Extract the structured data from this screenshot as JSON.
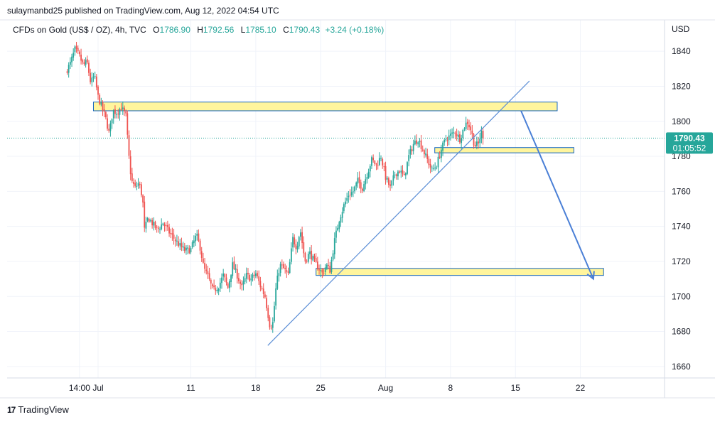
{
  "header": {
    "published_text": "sulaymanbd25 published on TradingView.com, Aug 12, 2022 04:54 UTC"
  },
  "legend": {
    "symbol": "CFDs on Gold (US$ / OZ), 4h, TVC",
    "open_label": "O",
    "open": "1786.90",
    "high_label": "H",
    "high": "1792.56",
    "low_label": "L",
    "low": "1785.10",
    "close_label": "C",
    "close": "1790.43",
    "change": "+3.24 (+0.18%)"
  },
  "price_axis": {
    "currency": "USD"
  },
  "last_price": {
    "price": "1790.43",
    "countdown": "01:05:52"
  },
  "footer": {
    "brand": "TradingView",
    "logo_glyph": "17"
  },
  "colors": {
    "up": "#26a69a",
    "down": "#ef5350",
    "zone_fill": "#fff59d",
    "zone_stroke": "#1565c0",
    "trendline": "#5b8ed6",
    "projection": "#4a7fd6",
    "last_price_bg": "#26a69a"
  },
  "chart_data": {
    "type": "candlestick",
    "timeframe": "4h",
    "ylim": [
      1650,
      1848
    ],
    "y_ticks": [
      1660,
      1680,
      1700,
      1720,
      1740,
      1760,
      1780,
      1800,
      1820,
      1840
    ],
    "x_range_days": [
      -3.5,
      52
    ],
    "x_ticks": [
      {
        "label": "14:00",
        "day": -2
      },
      {
        "label": "Jul",
        "day": 0
      },
      {
        "label": "11",
        "day": 10
      },
      {
        "label": "18",
        "day": 17
      },
      {
        "label": "25",
        "day": 24
      },
      {
        "label": "Aug",
        "day": 31
      },
      {
        "label": "8",
        "day": 38
      },
      {
        "label": "15",
        "day": 45
      },
      {
        "label": "22",
        "day": 52
      }
    ],
    "close_path": [
      [
        -3.5,
        1828
      ],
      [
        -3.0,
        1833
      ],
      [
        -2.5,
        1841
      ],
      [
        -2.0,
        1837
      ],
      [
        -1.6,
        1832
      ],
      [
        -1.2,
        1834
      ],
      [
        -0.8,
        1822
      ],
      [
        -0.4,
        1826
      ],
      [
        0.0,
        1814
      ],
      [
        0.4,
        1808
      ],
      [
        0.8,
        1802
      ],
      [
        1.2,
        1793
      ],
      [
        1.6,
        1806
      ],
      [
        2.0,
        1805
      ],
      [
        2.5,
        1808
      ],
      [
        3.0,
        1803
      ],
      [
        3.3,
        1781
      ],
      [
        3.6,
        1766
      ],
      [
        4.0,
        1762
      ],
      [
        4.4,
        1765
      ],
      [
        4.8,
        1756
      ],
      [
        5.0,
        1738
      ],
      [
        5.4,
        1745
      ],
      [
        5.8,
        1742
      ],
      [
        6.4,
        1738
      ],
      [
        7.0,
        1742
      ],
      [
        7.6,
        1737
      ],
      [
        8.2,
        1733
      ],
      [
        8.8,
        1729
      ],
      [
        9.4,
        1726
      ],
      [
        10.0,
        1727
      ],
      [
        10.6,
        1735
      ],
      [
        11.0,
        1728
      ],
      [
        11.4,
        1716
      ],
      [
        11.8,
        1712
      ],
      [
        12.4,
        1703
      ],
      [
        13.0,
        1706
      ],
      [
        13.5,
        1712
      ],
      [
        14.0,
        1705
      ],
      [
        14.5,
        1718
      ],
      [
        15.0,
        1712
      ],
      [
        15.5,
        1705
      ],
      [
        16.0,
        1712
      ],
      [
        16.5,
        1710
      ],
      [
        17.0,
        1713
      ],
      [
        17.5,
        1706
      ],
      [
        18.0,
        1700
      ],
      [
        18.5,
        1684
      ],
      [
        18.8,
        1683
      ],
      [
        19.2,
        1706
      ],
      [
        19.6,
        1718
      ],
      [
        20.0,
        1716
      ],
      [
        20.5,
        1712
      ],
      [
        21.0,
        1733
      ],
      [
        21.4,
        1728
      ],
      [
        21.8,
        1738
      ],
      [
        22.3,
        1720
      ],
      [
        22.8,
        1725
      ],
      [
        23.3,
        1720
      ],
      [
        23.8,
        1716
      ],
      [
        24.2,
        1713
      ],
      [
        24.6,
        1718
      ],
      [
        25.0,
        1715
      ],
      [
        25.5,
        1732
      ],
      [
        26.0,
        1744
      ],
      [
        26.5,
        1752
      ],
      [
        27.0,
        1758
      ],
      [
        27.5,
        1760
      ],
      [
        28.0,
        1766
      ],
      [
        28.5,
        1762
      ],
      [
        29.0,
        1770
      ],
      [
        29.5,
        1778
      ],
      [
        30.0,
        1775
      ],
      [
        30.5,
        1780
      ],
      [
        31.0,
        1768
      ],
      [
        31.5,
        1762
      ],
      [
        32.0,
        1770
      ],
      [
        32.5,
        1772
      ],
      [
        33.0,
        1768
      ],
      [
        33.5,
        1780
      ],
      [
        34.0,
        1787
      ],
      [
        34.5,
        1790
      ],
      [
        35.0,
        1784
      ],
      [
        35.5,
        1778
      ],
      [
        36.0,
        1772
      ],
      [
        36.5,
        1775
      ],
      [
        37.0,
        1784
      ],
      [
        37.5,
        1790
      ],
      [
        38.0,
        1792
      ],
      [
        38.5,
        1794
      ],
      [
        39.0,
        1790
      ],
      [
        39.5,
        1797
      ],
      [
        39.8,
        1800
      ],
      [
        40.2,
        1795
      ],
      [
        40.6,
        1786
      ],
      [
        41.0,
        1787
      ],
      [
        41.3,
        1794
      ],
      [
        41.6,
        1790.43
      ]
    ],
    "support_resistance_zones": [
      {
        "day_start": -0.5,
        "day_end": 49.5,
        "low": 1806,
        "high": 1811
      },
      {
        "day_start": 36.3,
        "day_end": 51.3,
        "low": 1782,
        "high": 1785
      },
      {
        "day_start": 23.5,
        "day_end": 54.5,
        "low": 1712,
        "high": 1716
      }
    ],
    "trendline": {
      "from": {
        "day": 18.3,
        "price": 1672
      },
      "to": {
        "day": 46.5,
        "price": 1823
      }
    },
    "projection_arrow": {
      "from": {
        "day": 45.6,
        "price": 1806
      },
      "to": {
        "day": 53.4,
        "price": 1710
      }
    },
    "last_price": 1790.43
  }
}
